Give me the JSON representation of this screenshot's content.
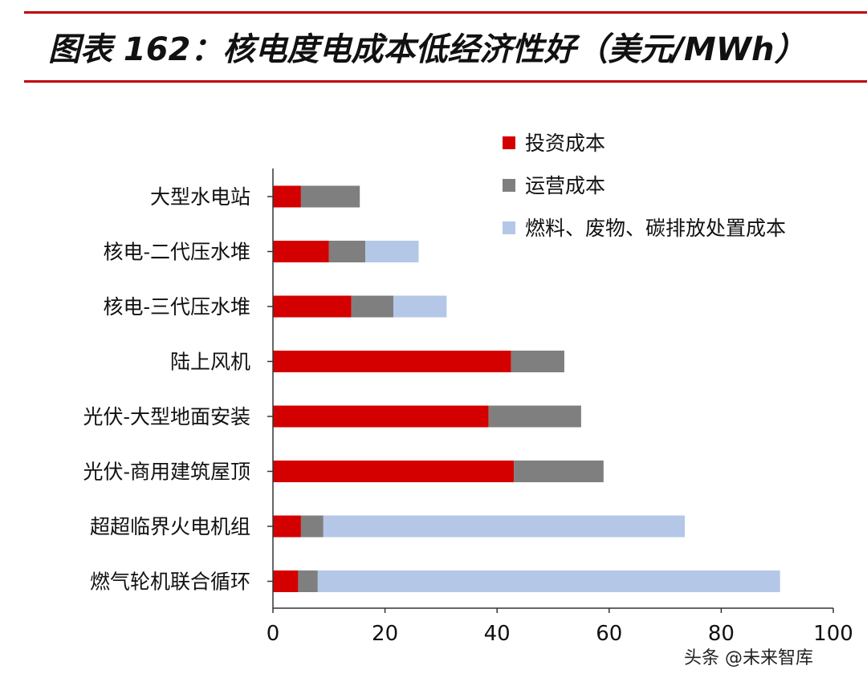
{
  "title": "图表 162：核电度电成本低经济性好（美元/MWh）",
  "watermark": "头条 @未来智库",
  "chart_data": {
    "type": "bar",
    "orientation": "horizontal",
    "stacked": true,
    "categories": [
      "大型水电站",
      "核电-二代压水堆",
      "核电-三代压水堆",
      "陆上风机",
      "光伏-大型地面安装",
      "光伏-商用建筑屋顶",
      "超超临界火电机组",
      "燃气轮机联合循环"
    ],
    "series": [
      {
        "name": "投资成本",
        "color": "#d40000",
        "values": [
          5,
          10,
          14,
          42.5,
          38.5,
          43,
          5,
          4.5
        ]
      },
      {
        "name": "运营成本",
        "color": "#7f7f7f",
        "values": [
          10.5,
          6.5,
          7.5,
          9.5,
          16.5,
          16,
          4,
          3.5
        ]
      },
      {
        "name": "燃料、废物、碳排放处置成本",
        "color": "#b4c7e7",
        "values": [
          0,
          9.5,
          9.5,
          0,
          0,
          0,
          64.5,
          82.5
        ]
      }
    ],
    "xlim": [
      0,
      100
    ],
    "xticks": [
      0,
      20,
      40,
      60,
      80,
      100
    ],
    "legend_position": "top-right",
    "grid": false
  }
}
